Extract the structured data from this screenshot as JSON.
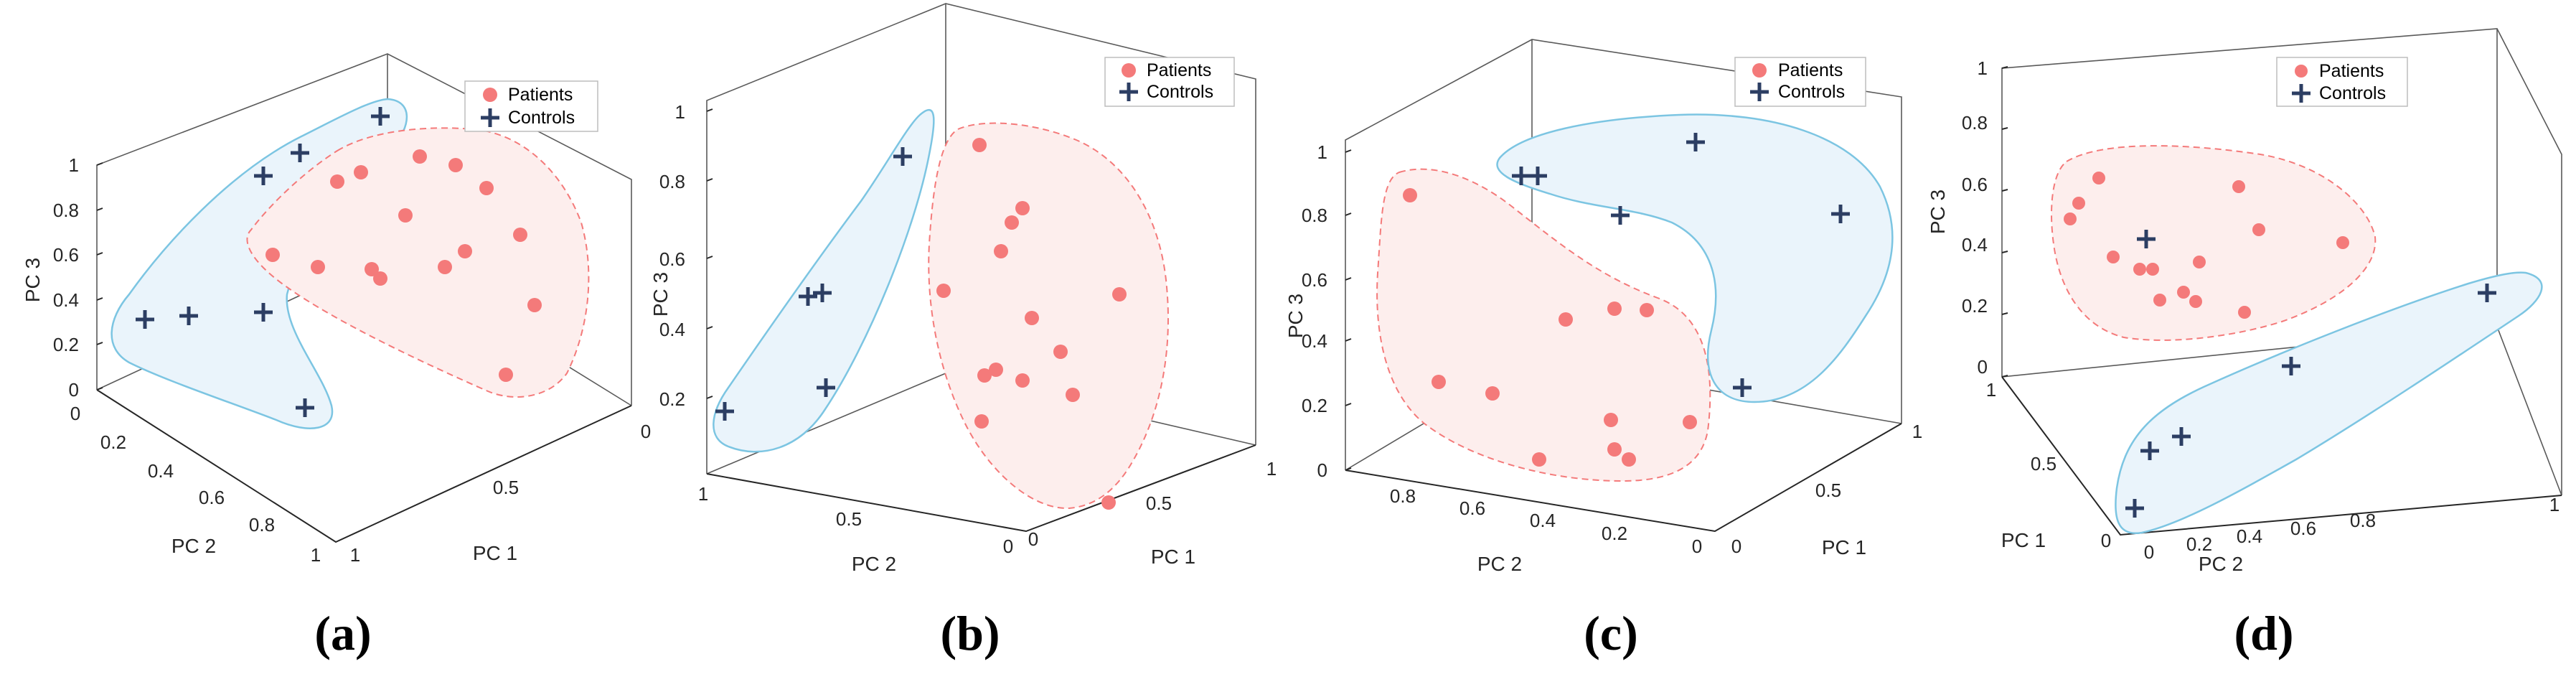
{
  "colors": {
    "patients": "#f47a7a",
    "patients_fill": "#fdeeed",
    "controls": "#2c3e63",
    "controls_outline": "#7cc5e2",
    "controls_fill": "#eaf4fb"
  },
  "chart_data": [
    {
      "type": "scatter",
      "panel": "a",
      "caption": "(a)",
      "projection": "3d",
      "xlabel": "PC 1",
      "ylabel": "PC 2",
      "zlabel": "PC 3",
      "xticks": [
        "0",
        "0.5",
        "1"
      ],
      "yticks": [
        "0",
        "0.2",
        "0.4",
        "0.6",
        "0.8",
        "1"
      ],
      "zticks": [
        "0",
        "0.2",
        "0.4",
        "0.6",
        "0.8",
        "1"
      ],
      "legend": {
        "position": "top-right",
        "entries": [
          "Patients",
          "Controls"
        ]
      },
      "series": [
        {
          "name": "Patients",
          "marker": "circle"
        },
        {
          "name": "Controls",
          "marker": "plus"
        }
      ]
    },
    {
      "type": "scatter",
      "panel": "b",
      "caption": "(b)",
      "projection": "3d",
      "xlabel": "PC 1",
      "ylabel": "PC 2",
      "zlabel": "PC 3",
      "xticks": [
        "0",
        "0.5",
        "1"
      ],
      "yticks": [
        "1",
        "0.5",
        "0"
      ],
      "zticks": [
        "0.2",
        "0.4",
        "0.6",
        "0.8",
        "1"
      ],
      "legend": {
        "position": "top-right",
        "entries": [
          "Patients",
          "Controls"
        ]
      },
      "series": [
        {
          "name": "Patients",
          "marker": "circle"
        },
        {
          "name": "Controls",
          "marker": "plus"
        }
      ]
    },
    {
      "type": "scatter",
      "panel": "c",
      "caption": "(c)",
      "projection": "3d",
      "xlabel": "PC 1",
      "ylabel": "PC 2",
      "zlabel": "PC 3",
      "xticks": [
        "0",
        "0.5",
        "1"
      ],
      "yticks": [
        "0.8",
        "0.6",
        "0.4",
        "0.2",
        "0"
      ],
      "zticks": [
        "0",
        "0.2",
        "0.4",
        "0.6",
        "0.8",
        "1"
      ],
      "legend": {
        "position": "top-right",
        "entries": [
          "Patients",
          "Controls"
        ]
      },
      "series": [
        {
          "name": "Patients",
          "marker": "circle"
        },
        {
          "name": "Controls",
          "marker": "plus"
        }
      ]
    },
    {
      "type": "scatter",
      "panel": "d",
      "caption": "(d)",
      "projection": "3d",
      "xlabel": "PC 1",
      "ylabel": "PC 2",
      "zlabel": "PC 3",
      "xticks": [
        "1",
        "0.5",
        "0"
      ],
      "yticks": [
        "0",
        "0.2",
        "0.4",
        "0.6",
        "0.8",
        "1"
      ],
      "zticks": [
        "0",
        "0.2",
        "0.4",
        "0.6",
        "0.8",
        "1"
      ],
      "legend": {
        "position": "top-right",
        "entries": [
          "Patients",
          "Controls"
        ]
      },
      "series": [
        {
          "name": "Patients",
          "marker": "circle"
        },
        {
          "name": "Controls",
          "marker": "plus"
        }
      ]
    }
  ]
}
